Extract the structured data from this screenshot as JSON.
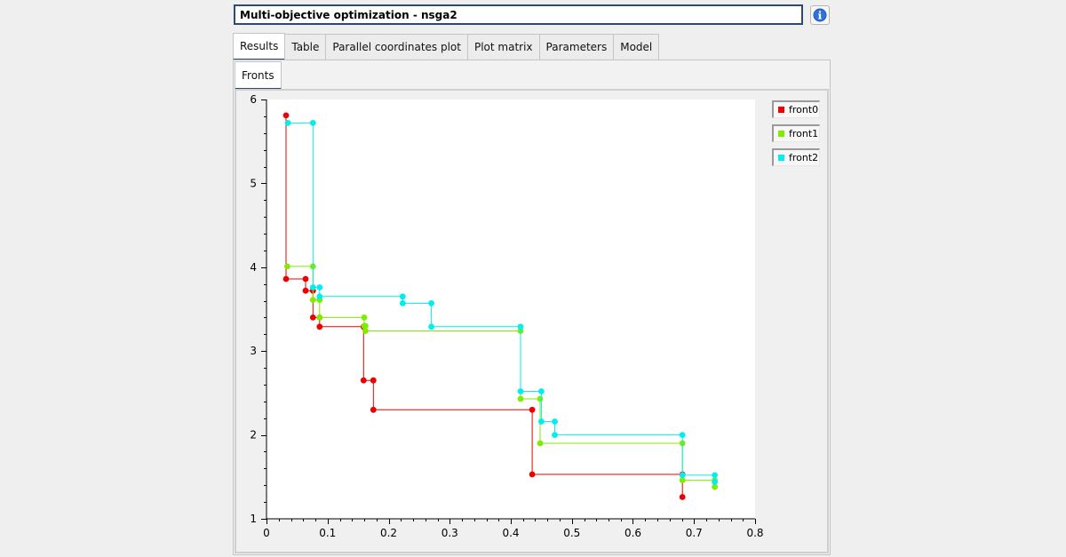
{
  "window": {
    "title_value": "Multi-objective optimization - nsga2",
    "info_icon": "info-icon"
  },
  "tabs": [
    "Results",
    "Table",
    "Parallel coordinates plot",
    "Plot matrix",
    "Parameters",
    "Model"
  ],
  "active_tab": "Results",
  "subtabs": [
    "Fronts"
  ],
  "active_subtab": "Fronts",
  "chart_data": {
    "type": "scatter",
    "title": "",
    "xlabel": "",
    "ylabel": "",
    "xlim": [
      0,
      0.8
    ],
    "ylim": [
      1,
      6
    ],
    "x_ticks": [
      "0",
      "0.1",
      "0.2",
      "0.3",
      "0.4",
      "0.5",
      "0.6",
      "0.7",
      "0.8"
    ],
    "x_tick_values": [
      0,
      0.1,
      0.2,
      0.3,
      0.4,
      0.5,
      0.6,
      0.7,
      0.8
    ],
    "y_ticks": [
      "1",
      "2",
      "3",
      "4",
      "5",
      "6"
    ],
    "y_tick_values": [
      1,
      2,
      3,
      4,
      5,
      6
    ],
    "grid": false,
    "legend_position": "right",
    "series": [
      {
        "name": "front0",
        "color": "#ee0000",
        "points": [
          [
            0.032,
            5.81
          ],
          [
            0.032,
            3.86
          ],
          [
            0.064,
            3.86
          ],
          [
            0.064,
            3.72
          ],
          [
            0.076,
            3.72
          ],
          [
            0.076,
            3.4
          ],
          [
            0.087,
            3.4
          ],
          [
            0.087,
            3.29
          ],
          [
            0.159,
            3.29
          ],
          [
            0.159,
            2.65
          ],
          [
            0.175,
            2.65
          ],
          [
            0.175,
            2.3
          ],
          [
            0.435,
            2.3
          ],
          [
            0.435,
            1.53
          ],
          [
            0.681,
            1.53
          ],
          [
            0.681,
            1.26
          ]
        ]
      },
      {
        "name": "front1",
        "color": "#7fec00",
        "points": [
          [
            0.034,
            4.01
          ],
          [
            0.076,
            4.01
          ],
          [
            0.076,
            3.61
          ],
          [
            0.087,
            3.61
          ],
          [
            0.087,
            3.4
          ],
          [
            0.16,
            3.4
          ],
          [
            0.16,
            3.3
          ],
          [
            0.162,
            3.3
          ],
          [
            0.162,
            3.24
          ],
          [
            0.416,
            3.24
          ],
          [
            0.416,
            2.43
          ],
          [
            0.448,
            2.43
          ],
          [
            0.448,
            1.9
          ],
          [
            0.681,
            1.9
          ],
          [
            0.681,
            1.46
          ],
          [
            0.734,
            1.46
          ],
          [
            0.734,
            1.38
          ]
        ]
      },
      {
        "name": "front2",
        "color": "#00eeee",
        "points": [
          [
            0.035,
            5.72
          ],
          [
            0.076,
            5.72
          ],
          [
            0.076,
            3.76
          ],
          [
            0.087,
            3.76
          ],
          [
            0.087,
            3.65
          ],
          [
            0.223,
            3.65
          ],
          [
            0.223,
            3.57
          ],
          [
            0.27,
            3.57
          ],
          [
            0.27,
            3.29
          ],
          [
            0.416,
            3.29
          ],
          [
            0.416,
            2.52
          ],
          [
            0.45,
            2.52
          ],
          [
            0.45,
            2.16
          ],
          [
            0.472,
            2.16
          ],
          [
            0.472,
            2.0
          ],
          [
            0.681,
            2.0
          ],
          [
            0.681,
            1.52
          ],
          [
            0.734,
            1.52
          ],
          [
            0.734,
            1.44
          ]
        ]
      }
    ]
  }
}
